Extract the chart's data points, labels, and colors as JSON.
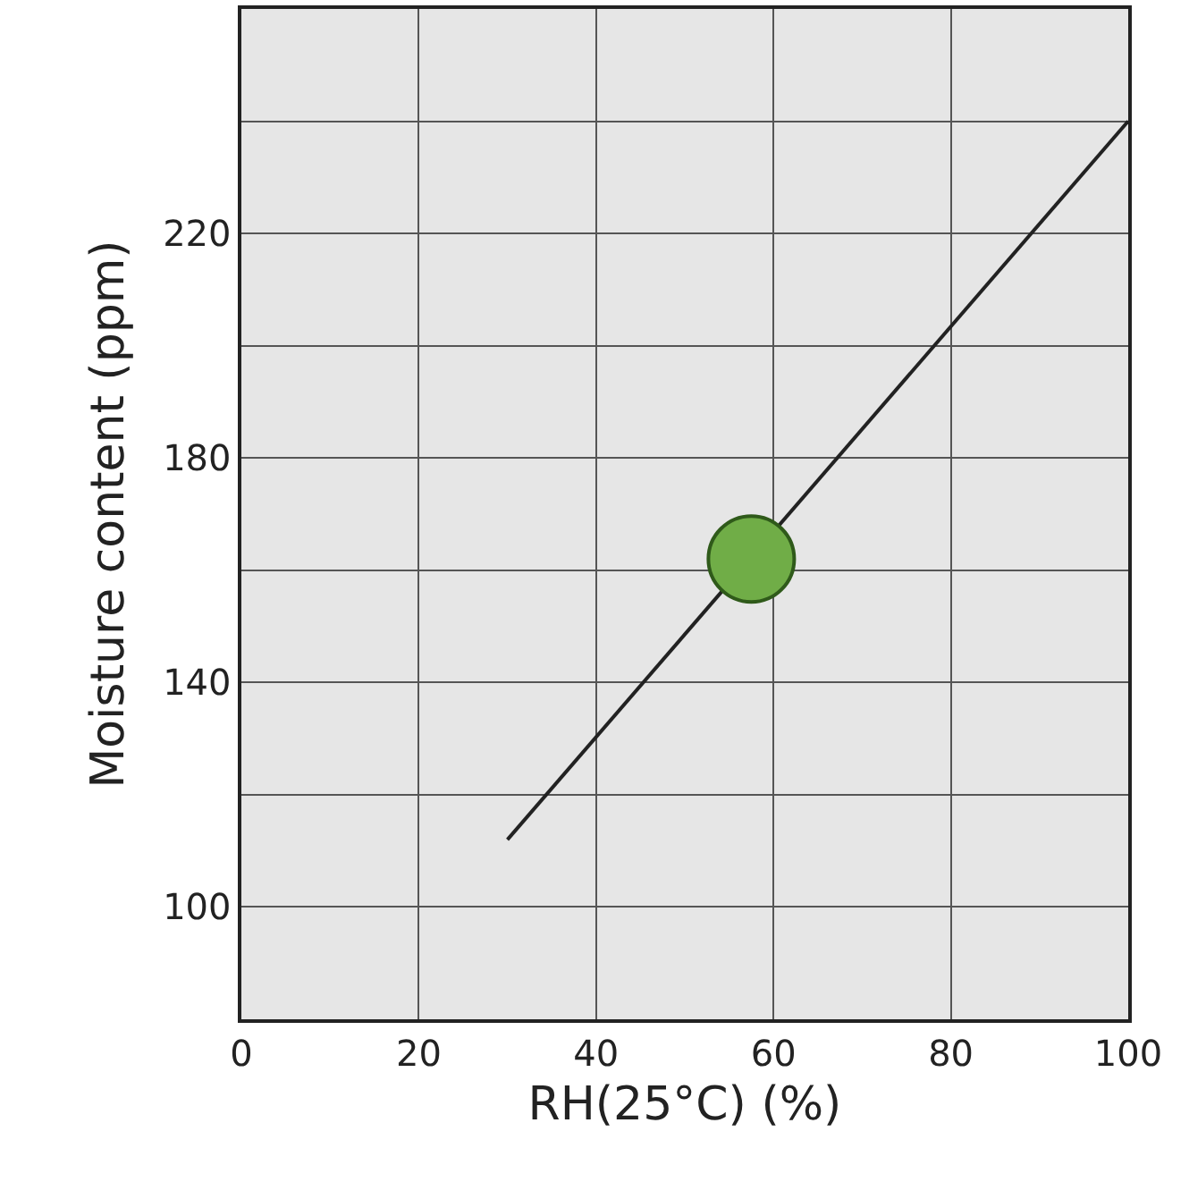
{
  "chart_data": {
    "type": "line",
    "xlabel": "RH(25°C) (%)",
    "ylabel": "Moisture content (ppm)",
    "xlim": [
      0,
      100
    ],
    "xticks": [
      0,
      20,
      40,
      60,
      80,
      100
    ],
    "ylim": [
      80,
      260
    ],
    "yticks": [
      {
        "value": 100,
        "label": "100"
      },
      {
        "value": 120,
        "label": null
      },
      {
        "value": 140,
        "label": "140"
      },
      {
        "value": 160,
        "label": null
      },
      {
        "value": 180,
        "label": "180"
      },
      {
        "value": 200,
        "label": null
      },
      {
        "value": 220,
        "label": "220"
      },
      {
        "value": 240,
        "label": null
      }
    ],
    "grid": true,
    "series": [
      {
        "color": "#222222",
        "x": [
          30,
          100
        ],
        "values": [
          112,
          240
        ],
        "line_style": "solid"
      },
      {
        "type": "scatter",
        "color": "#70ad47",
        "x": [
          57.5
        ],
        "values": [
          162
        ],
        "marker": "circle"
      }
    ]
  }
}
